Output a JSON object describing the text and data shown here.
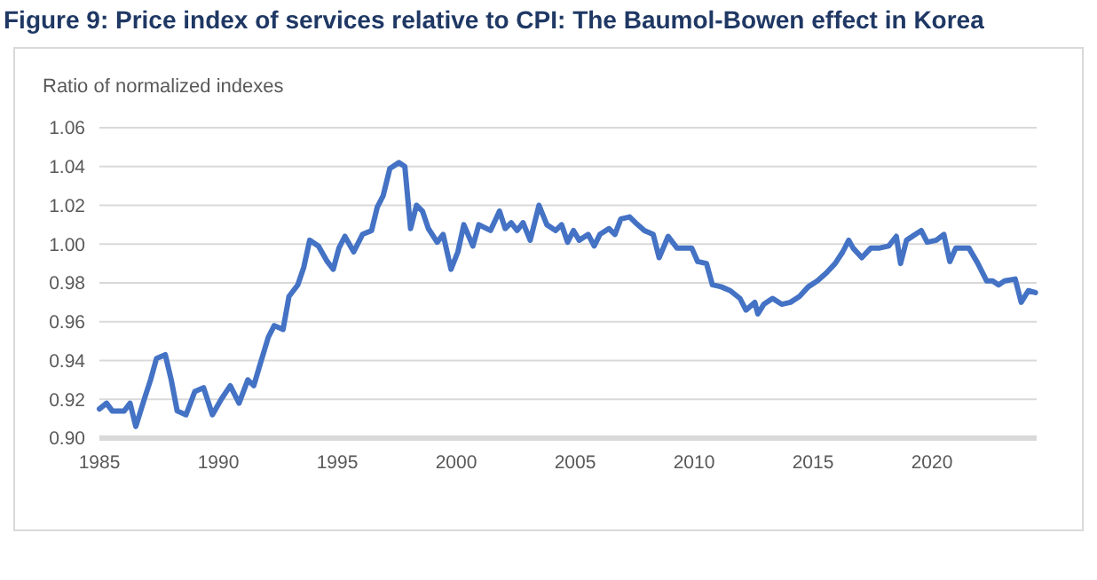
{
  "chart_data": {
    "type": "line",
    "title": "Figure 9: Price index of services relative to CPI: The Baumol-Bowen effect in Korea",
    "ylabel": "Ratio of normalized indexes",
    "xlim": [
      1985,
      2024.4
    ],
    "xticks": [
      1985,
      1990,
      1995,
      2000,
      2005,
      2010,
      2015,
      2020
    ],
    "ylim": [
      0.9,
      1.06
    ],
    "yticks": [
      {
        "value": 0.9,
        "label": "0.90"
      },
      {
        "value": 0.92,
        "label": "0.92"
      },
      {
        "value": 0.94,
        "label": "0.94"
      },
      {
        "value": 0.96,
        "label": "0.96"
      },
      {
        "value": 0.98,
        "label": "0.98"
      },
      {
        "value": 1.0,
        "label": "1.00"
      },
      {
        "value": 1.02,
        "label": "1.02"
      },
      {
        "value": 1.04,
        "label": "1.04"
      },
      {
        "value": 1.06,
        "label": "1.06"
      }
    ],
    "grid": "y",
    "marker": "none",
    "line_style": "solid",
    "series": [
      {
        "color": "#4472c4",
        "x": [
          1985.0,
          1985.3,
          1985.54,
          1986.04,
          1986.29,
          1986.53,
          1986.91,
          1987.15,
          1987.4,
          1987.77,
          1988.02,
          1988.27,
          1988.64,
          1989.01,
          1989.38,
          1989.75,
          1990.12,
          1990.5,
          1990.87,
          1991.24,
          1991.49,
          1991.73,
          1992.1,
          1992.35,
          1992.72,
          1992.97,
          1993.34,
          1993.59,
          1993.84,
          1994.21,
          1994.58,
          1994.83,
          1995.07,
          1995.32,
          1995.69,
          1996.06,
          1996.44,
          1996.68,
          1996.93,
          1997.21,
          1997.59,
          1997.84,
          1998.08,
          1998.33,
          1998.58,
          1998.83,
          1999.2,
          1999.45,
          1999.78,
          2000.07,
          2000.32,
          2000.7,
          2000.95,
          2001.44,
          2001.82,
          2002.06,
          2002.31,
          2002.56,
          2002.81,
          2003.11,
          2003.48,
          2003.81,
          2004.18,
          2004.43,
          2004.68,
          2004.93,
          2005.17,
          2005.55,
          2005.8,
          2006.04,
          2006.42,
          2006.67,
          2006.92,
          2007.29,
          2007.54,
          2007.91,
          2008.28,
          2008.53,
          2008.91,
          2009.28,
          2009.65,
          2009.9,
          2010.15,
          2010.52,
          2010.77,
          2011.14,
          2011.52,
          2011.93,
          2012.18,
          2012.55,
          2012.68,
          2012.93,
          2013.3,
          2013.68,
          2014.05,
          2014.43,
          2014.8,
          2015.18,
          2015.55,
          2015.93,
          2016.25,
          2016.5,
          2016.68,
          2017.05,
          2017.43,
          2017.8,
          2018.18,
          2018.5,
          2018.68,
          2018.93,
          2019.3,
          2019.55,
          2019.8,
          2020.18,
          2020.5,
          2020.75,
          2021.0,
          2021.3,
          2021.55,
          2021.93,
          2022.3,
          2022.55,
          2022.8,
          2023.05,
          2023.5,
          2023.75,
          2024.05,
          2024.35
        ],
        "values": [
          0.915,
          0.918,
          0.914,
          0.914,
          0.918,
          0.906,
          0.921,
          0.93,
          0.941,
          0.943,
          0.93,
          0.914,
          0.912,
          0.924,
          0.926,
          0.912,
          0.92,
          0.927,
          0.918,
          0.93,
          0.927,
          0.937,
          0.952,
          0.958,
          0.956,
          0.973,
          0.979,
          0.988,
          1.002,
          0.999,
          0.991,
          0.987,
          0.998,
          1.004,
          0.996,
          1.005,
          1.007,
          1.019,
          1.025,
          1.039,
          1.042,
          1.04,
          1.008,
          1.02,
          1.017,
          1.008,
          1.001,
          1.005,
          0.987,
          0.996,
          1.01,
          0.999,
          1.01,
          1.007,
          1.017,
          1.008,
          1.011,
          1.007,
          1.011,
          1.002,
          1.02,
          1.01,
          1.007,
          1.01,
          1.001,
          1.007,
          1.002,
          1.005,
          0.999,
          1.005,
          1.008,
          1.005,
          1.013,
          1.014,
          1.011,
          1.007,
          1.005,
          0.993,
          1.004,
          0.998,
          0.998,
          0.998,
          0.991,
          0.99,
          0.979,
          0.978,
          0.976,
          0.972,
          0.966,
          0.97,
          0.964,
          0.969,
          0.972,
          0.969,
          0.97,
          0.973,
          0.978,
          0.981,
          0.985,
          0.99,
          0.996,
          1.002,
          0.998,
          0.993,
          0.998,
          0.998,
          0.999,
          1.004,
          0.99,
          1.002,
          1.005,
          1.007,
          1.001,
          1.002,
          1.005,
          0.991,
          0.998,
          0.998,
          0.998,
          0.99,
          0.981,
          0.981,
          0.979,
          0.981,
          0.982,
          0.97,
          0.976,
          0.975
        ]
      }
    ]
  }
}
